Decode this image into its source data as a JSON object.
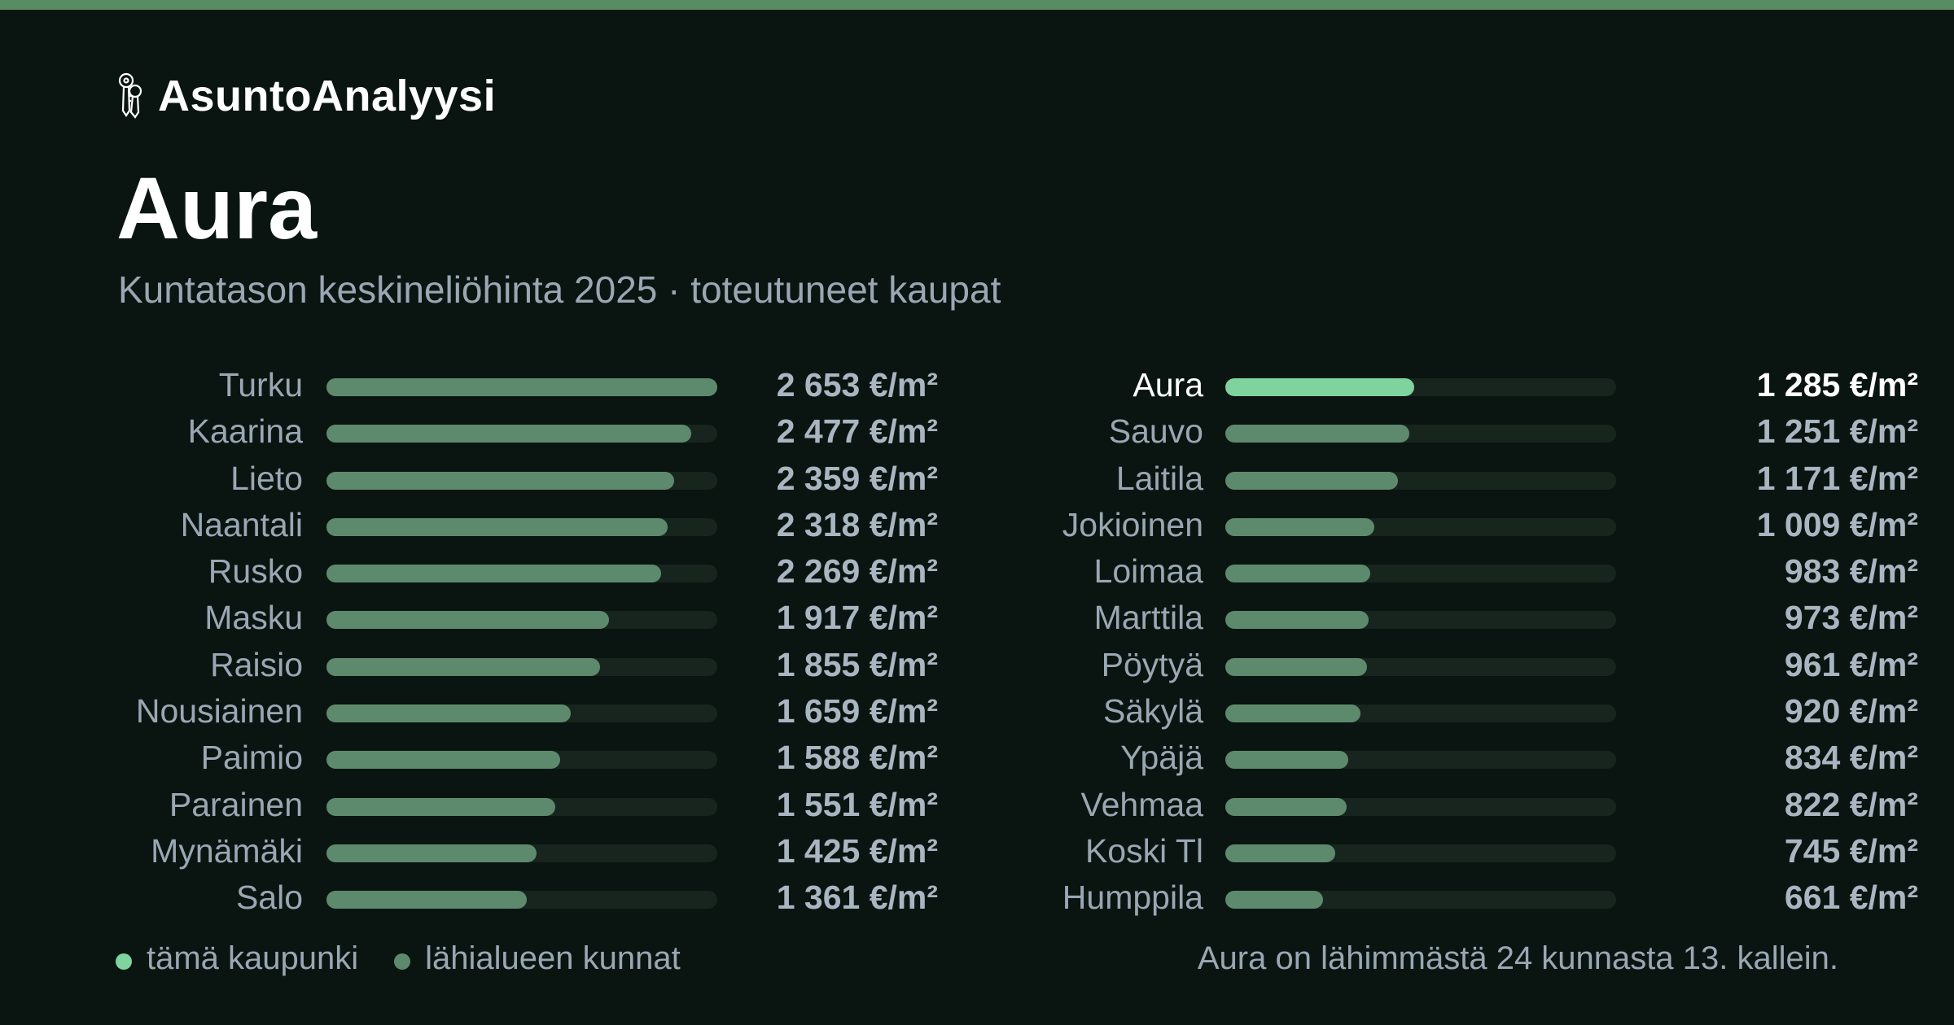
{
  "brand": {
    "name": "AsuntoAnalyysi",
    "icon": "keys-icon"
  },
  "title": "Aura",
  "subtitle": "Kuntatason keskineliöhinta 2025 · toteutuneet kaupat",
  "colors": {
    "accent": "#7fd39e",
    "bar": "#5d8a6c",
    "track": "#18251f",
    "topbar": "#5a8c64"
  },
  "chart_data": {
    "type": "bar",
    "title": "Aura",
    "subtitle": "Kuntatason keskineliöhinta 2025 · toteutuneet kaupat",
    "unit": "€/m²",
    "max_value": 2653,
    "highlight": "Aura",
    "columns": [
      [
        {
          "name": "Turku",
          "value": 2653,
          "label": "2 653 €/m²"
        },
        {
          "name": "Kaarina",
          "value": 2477,
          "label": "2 477 €/m²"
        },
        {
          "name": "Lieto",
          "value": 2359,
          "label": "2 359 €/m²"
        },
        {
          "name": "Naantali",
          "value": 2318,
          "label": "2 318 €/m²"
        },
        {
          "name": "Rusko",
          "value": 2269,
          "label": "2 269 €/m²"
        },
        {
          "name": "Masku",
          "value": 1917,
          "label": "1 917 €/m²"
        },
        {
          "name": "Raisio",
          "value": 1855,
          "label": "1 855 €/m²"
        },
        {
          "name": "Nousiainen",
          "value": 1659,
          "label": "1 659 €/m²"
        },
        {
          "name": "Paimio",
          "value": 1588,
          "label": "1 588 €/m²"
        },
        {
          "name": "Parainen",
          "value": 1551,
          "label": "1 551 €/m²"
        },
        {
          "name": "Mynämäki",
          "value": 1425,
          "label": "1 425 €/m²"
        },
        {
          "name": "Salo",
          "value": 1361,
          "label": "1 361 €/m²"
        }
      ],
      [
        {
          "name": "Aura",
          "value": 1285,
          "label": "1 285 €/m²"
        },
        {
          "name": "Sauvo",
          "value": 1251,
          "label": "1 251 €/m²"
        },
        {
          "name": "Laitila",
          "value": 1171,
          "label": "1 171 €/m²"
        },
        {
          "name": "Jokioinen",
          "value": 1009,
          "label": "1 009 €/m²"
        },
        {
          "name": "Loimaa",
          "value": 983,
          "label": "983 €/m²"
        },
        {
          "name": "Marttila",
          "value": 973,
          "label": "973 €/m²"
        },
        {
          "name": "Pöytyä",
          "value": 961,
          "label": "961 €/m²"
        },
        {
          "name": "Säkylä",
          "value": 920,
          "label": "920 €/m²"
        },
        {
          "name": "Ypäjä",
          "value": 834,
          "label": "834 €/m²"
        },
        {
          "name": "Vehmaa",
          "value": 822,
          "label": "822 €/m²"
        },
        {
          "name": "Koski Tl",
          "value": 745,
          "label": "745 €/m²"
        },
        {
          "name": "Humppila",
          "value": 661,
          "label": "661 €/m²"
        }
      ]
    ],
    "legend": [
      {
        "label": "tämä kaupunki",
        "color": "#7fd39e"
      },
      {
        "label": "lähialueen kunnat",
        "color": "#5d8a6c"
      }
    ],
    "annotation": "Aura on lähimmästä 24 kunnasta 13. kallein."
  }
}
